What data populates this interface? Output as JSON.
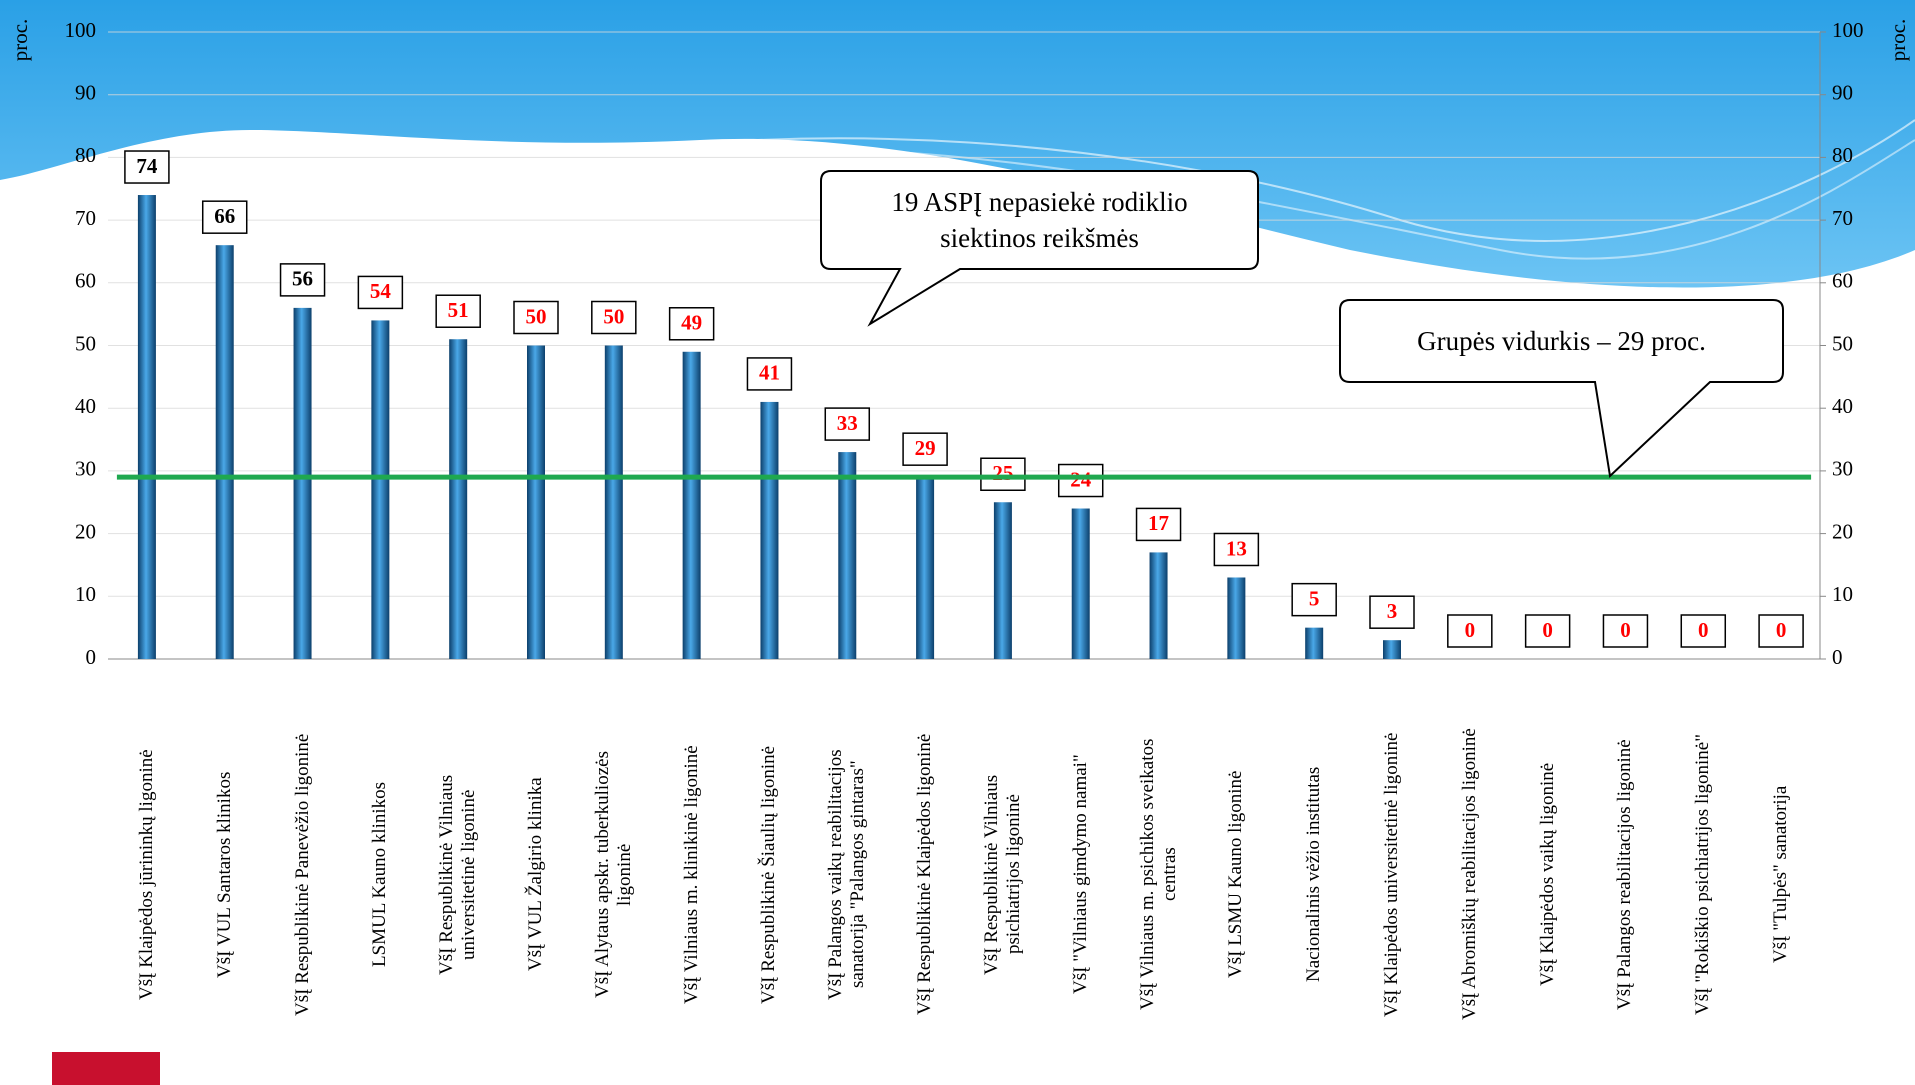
{
  "chart_data": {
    "type": "bar",
    "categories": [
      "VšĮ Klaipėdos jūrininkų ligoninė",
      "VšĮ VUL Santaros klinikos",
      "VšĮ Respublikinė Panevėžio ligoninė",
      "LSMUL Kauno klinikos",
      "VšĮ Respublikinė Vilniaus\nuniversitetinė ligoninė",
      "VšĮ VUL Žalgirio klinika",
      "VšĮ Alytaus apskr. tuberkuliozės\nligoninė",
      "VšĮ Vilniaus m. klinikinė ligoninė",
      "VšĮ Respublikinė Šiaulių ligoninė",
      "VšĮ Palangos vaikų reabilitacijos\nsanatorija \"Palangos gintaras\"",
      "VšĮ Respublikinė Klaipėdos ligoninė",
      "VšĮ Respublikinė Vilniaus\npsichiatrijos ligoninė",
      "VšĮ \"Vilniaus gimdymo namai\"",
      "VšĮ Vilniaus m. psichikos sveikatos\ncentras",
      "VšĮ LSMU Kauno ligoninė",
      "Nacionalinis vėžio institutas",
      "VšĮ Klaipėdos universitetinė ligoninė",
      "VšĮ Abromiškių reabilitacijos ligoninė",
      "VšĮ Klaipėdos vaikų ligoninė",
      "VšĮ Palangos reabilitacijos ligoninė",
      "VšĮ \"Rokiškio psichiatrijos ligoninė\"",
      "VšĮ \"Tulpės\" sanatorija"
    ],
    "values": [
      74,
      66,
      56,
      54,
      51,
      50,
      50,
      49,
      41,
      33,
      29,
      25,
      24,
      17,
      13,
      5,
      3,
      0,
      0,
      0,
      0,
      0
    ],
    "color": "#1f77b4",
    "label_colors": [
      "#000000",
      "#000000",
      "#000000",
      "#ff0000",
      "#ff0000",
      "#ff0000",
      "#ff0000",
      "#ff0000",
      "#ff0000",
      "#ff0000",
      "#ff0000",
      "#ff0000",
      "#ff0000",
      "#ff0000",
      "#ff0000",
      "#ff0000",
      "#ff0000",
      "#ff0000",
      "#ff0000",
      "#ff0000",
      "#ff0000",
      "#ff0000"
    ],
    "ylabel": "proc.",
    "y2label": "proc.",
    "ylim": [
      0,
      100
    ],
    "yticks": [
      0,
      10,
      20,
      30,
      40,
      50,
      60,
      70,
      80,
      90,
      100
    ],
    "y2lim": [
      0,
      100
    ],
    "y2ticks": [
      0,
      10,
      20,
      30,
      40,
      50,
      60,
      70,
      80,
      90,
      100
    ],
    "grid": true,
    "reference_line": {
      "value": 29,
      "color": "#1fa84f"
    },
    "annotations": [
      "19 ASPĮ nepasiekė rodiklio\nsiektinos reikšmės",
      "Grupės vidurkis – 29 proc."
    ]
  }
}
